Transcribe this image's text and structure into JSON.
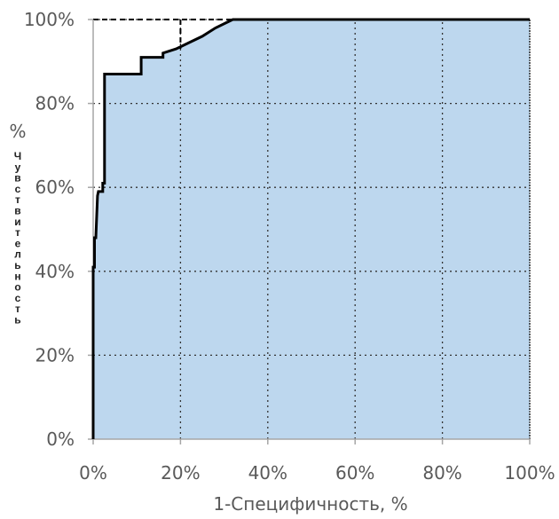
{
  "chart_data": {
    "type": "area",
    "xlabel": "1-Специфичность, %",
    "ylabel": "Чувствительность",
    "ylabel_unit": "%",
    "xlim": [
      0,
      100
    ],
    "ylim": [
      0,
      100
    ],
    "x_ticks": [
      "0%",
      "20%",
      "40%",
      "60%",
      "80%",
      "100%"
    ],
    "y_ticks": [
      "0%",
      "20%",
      "40%",
      "60%",
      "80%",
      "100%"
    ],
    "grid": true,
    "legend": "none",
    "series": [
      {
        "x": [
          0,
          0,
          0.3,
          0.3,
          0.6,
          1.0,
          1.2,
          2.2,
          2.2,
          2.6,
          2.6,
          11.0,
          11.0,
          16.0,
          16.0,
          19.0,
          22.0,
          25.0,
          28.0,
          32.0,
          100.0
        ],
        "y": [
          0,
          41,
          41,
          48,
          48,
          58,
          59,
          59,
          61,
          61,
          87,
          87,
          91,
          91,
          92,
          93,
          94.5,
          96,
          98,
          100,
          100
        ]
      }
    ],
    "colors": {
      "curve": "#000000",
      "fill": "#bdd7ee",
      "grid": "#333333",
      "axis": "#a6a6a6",
      "tick_text": "#595959"
    }
  }
}
